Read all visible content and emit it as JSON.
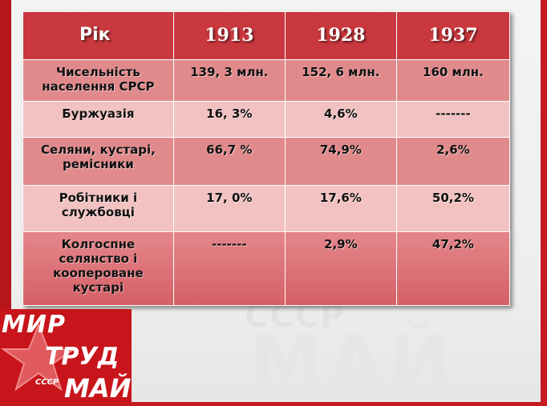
{
  "table": {
    "header": [
      "Рік",
      "1913",
      "1928",
      "1937"
    ],
    "rows": [
      {
        "label": "Чисельність населення  СРСР",
        "values": [
          "139, 3 млн.",
          "152, 6 млн.",
          "160 млн."
        ]
      },
      {
        "label": "Буржуазія",
        "values": [
          "16, 3%",
          "4,6%",
          "-------"
        ]
      },
      {
        "label": "Селяни, кустарі, ремісники",
        "values": [
          "66,7 %",
          "74,9%",
          "2,6%"
        ]
      },
      {
        "label": "Робітники і службовці",
        "values": [
          "17, 0%",
          "17,6%",
          "50,2%"
        ]
      },
      {
        "label": "Колгоспне селянство і коопероване кустарі",
        "values": [
          "-------",
          "2,9%",
          "47,2%"
        ]
      }
    ]
  },
  "logo": {
    "line1": "МИР",
    "line2": "ТРУД",
    "line3": "МАЙ",
    "small": "СССР"
  },
  "watermark": {
    "top": "СССР",
    "big": "МАЙ"
  },
  "colors": {
    "header": "#c8383e",
    "row_dark": "#e18a8c",
    "row_light": "#f2c2c2",
    "brand_red": "#c41a20"
  }
}
